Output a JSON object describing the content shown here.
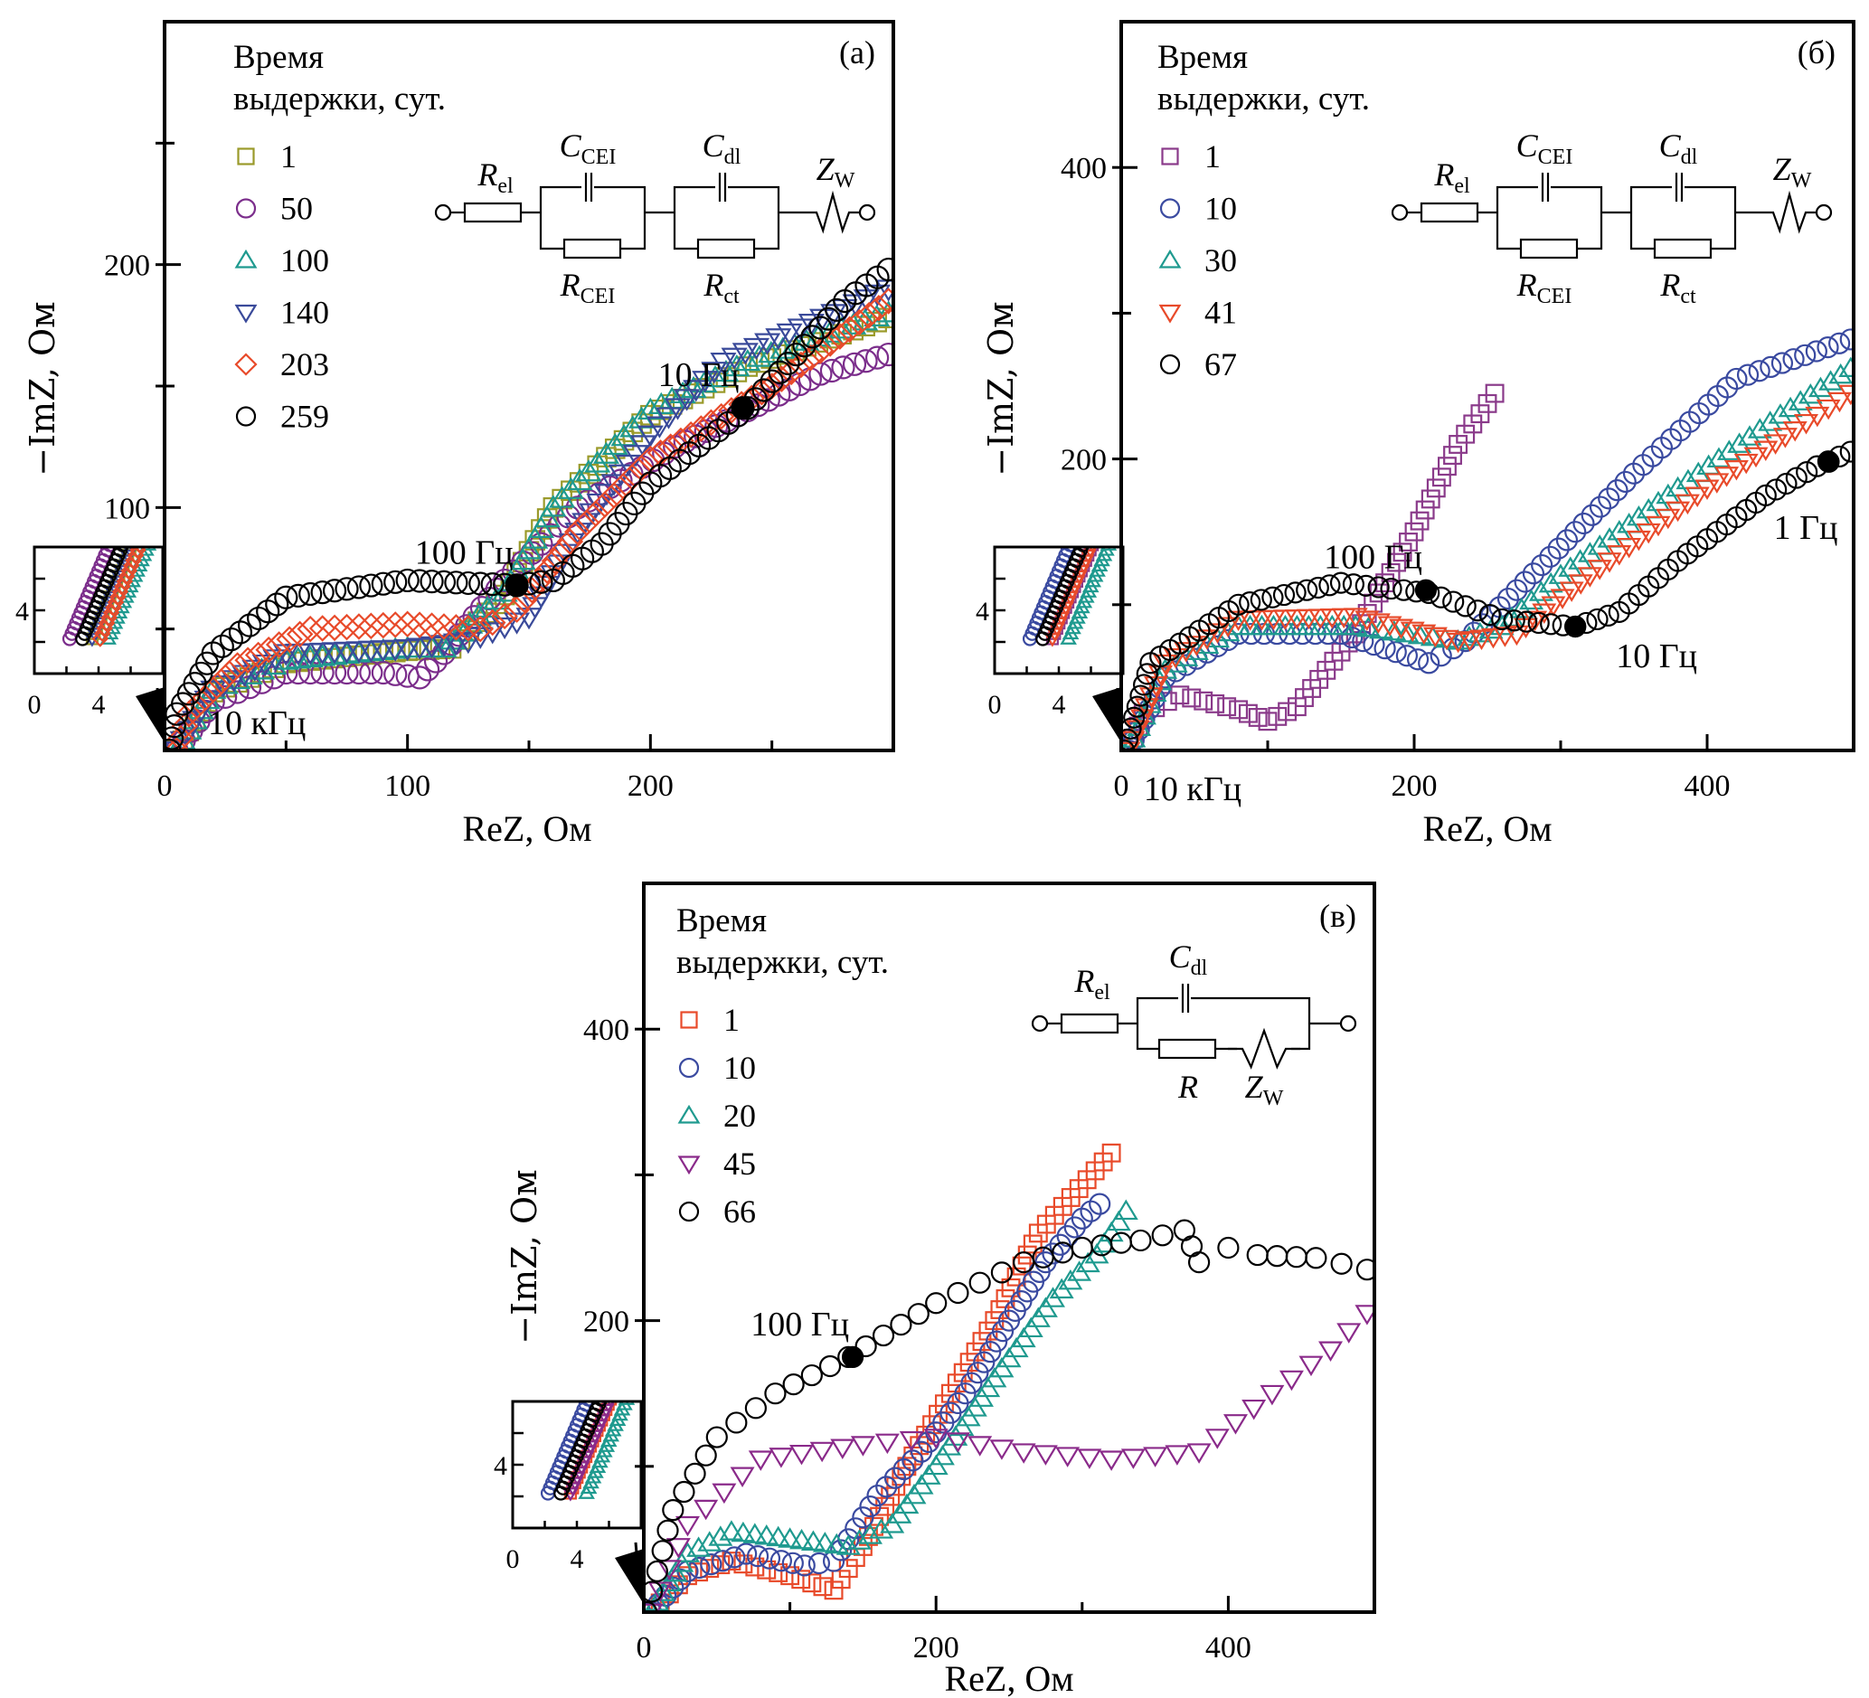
{
  "figure": {
    "legend_title_line1": "Время",
    "legend_title_line2": "выдержки, сут.",
    "xlabel": "ReZ, Ом",
    "ylabel": "−ImZ, Ом"
  },
  "chart_data": [
    {
      "type": "scatter",
      "panel": "(а)",
      "xlabel": "ReZ, Ом",
      "ylabel": "−ImZ, Ом",
      "xlim": [
        0,
        300
      ],
      "ylim": [
        0,
        300
      ],
      "xticks": [
        0,
        100,
        200
      ],
      "yticks": [
        100,
        200
      ],
      "legend_title": "Время выдержки, сут.",
      "legend_placement": "top-left",
      "circuit": {
        "type": "Rel-(CCEI||RCEI)-(Cdl||Rct)-ZW",
        "labels": [
          {
            "main": "R",
            "sub": "el"
          },
          {
            "main": "C",
            "sub": "CEI"
          },
          {
            "main": "R",
            "sub": "CEI"
          },
          {
            "main": "C",
            "sub": "dl"
          },
          {
            "main": "R",
            "sub": "ct"
          },
          {
            "main": "Z",
            "sub": "W"
          }
        ]
      },
      "inset": {
        "xticks": [
          "0",
          "4"
        ],
        "yticks": [
          "4"
        ],
        "xlim": [
          0,
          8
        ],
        "ylim": [
          0,
          8
        ]
      },
      "annotations": [
        {
          "text": "10 Гц",
          "x": 238,
          "y": 141
        },
        {
          "text": "100 Гц",
          "x": 145,
          "y": 68
        },
        {
          "text": "10 кГц",
          "x": 3,
          "y": 3
        }
      ],
      "series": [
        {
          "name": "1",
          "marker": "square",
          "color": "#9a9a2a",
          "points": [
            [
              5,
              0
            ],
            [
              20,
              24
            ],
            [
              50,
              36
            ],
            [
              100,
              41
            ],
            [
              118,
              42
            ],
            [
              140,
              64
            ],
            [
              160,
              100
            ],
            [
              200,
              138
            ],
            [
              240,
              158
            ],
            [
              298,
              178
            ]
          ]
        },
        {
          "name": "50",
          "marker": "circle",
          "color": "#7b2d8b",
          "points": [
            [
              5,
              0
            ],
            [
              20,
              20
            ],
            [
              50,
              32
            ],
            [
              90,
              32
            ],
            [
              105,
              30
            ],
            [
              115,
              40
            ],
            [
              140,
              70
            ],
            [
              170,
              100
            ],
            [
              210,
              125
            ],
            [
              240,
              140
            ],
            [
              270,
              155
            ],
            [
              298,
              163
            ]
          ]
        },
        {
          "name": "100",
          "marker": "triangle-up",
          "color": "#1f9a8f",
          "points": [
            [
              5,
              0
            ],
            [
              20,
              25
            ],
            [
              50,
              37
            ],
            [
              100,
              42
            ],
            [
              115,
              42
            ],
            [
              140,
              65
            ],
            [
              160,
              100
            ],
            [
              200,
              140
            ],
            [
              240,
              160
            ],
            [
              298,
              180
            ]
          ]
        },
        {
          "name": "140",
          "marker": "triangle-down",
          "color": "#3a4a9a",
          "points": [
            [
              5,
              0
            ],
            [
              20,
              25
            ],
            [
              50,
              40
            ],
            [
              100,
              42
            ],
            [
              125,
              45
            ],
            [
              150,
              55
            ],
            [
              170,
              90
            ],
            [
              200,
              130
            ],
            [
              230,
              160
            ],
            [
              298,
              190
            ]
          ]
        },
        {
          "name": "203",
          "marker": "diamond",
          "color": "#e84a2a",
          "points": [
            [
              5,
              0
            ],
            [
              10,
              15
            ],
            [
              30,
              35
            ],
            [
              60,
              50
            ],
            [
              100,
              52
            ],
            [
              130,
              50
            ],
            [
              145,
              58
            ],
            [
              170,
              90
            ],
            [
              200,
              120
            ],
            [
              250,
              150
            ],
            [
              298,
              185
            ]
          ]
        },
        {
          "name": "259",
          "marker": "circle",
          "color": "#000000",
          "points": [
            [
              2,
              0
            ],
            [
              5,
              15
            ],
            [
              20,
              40
            ],
            [
              50,
              63
            ],
            [
              100,
              70
            ],
            [
              145,
              68
            ],
            [
              160,
              70
            ],
            [
              180,
              85
            ],
            [
              200,
              110
            ],
            [
              240,
              141
            ],
            [
              280,
              185
            ],
            [
              298,
              198
            ]
          ],
          "filled_points": [
            [
              145,
              68
            ],
            [
              238,
              141
            ]
          ]
        }
      ]
    },
    {
      "type": "scatter",
      "panel": "(б)",
      "xlabel": "ReZ, Ом",
      "ylabel": "−ImZ, Ом",
      "xlim": [
        0,
        500
      ],
      "ylim": [
        0,
        500
      ],
      "xticks": [
        0,
        200,
        400
      ],
      "yticks": [
        200,
        400
      ],
      "legend_title": "Время выдержки, сут.",
      "legend_placement": "top-left",
      "circuit": {
        "type": "Rel-(CCEI||RCEI)-(Cdl||Rct)-ZW",
        "labels": [
          {
            "main": "R",
            "sub": "el"
          },
          {
            "main": "C",
            "sub": "CEI"
          },
          {
            "main": "R",
            "sub": "CEI"
          },
          {
            "main": "C",
            "sub": "dl"
          },
          {
            "main": "R",
            "sub": "ct"
          },
          {
            "main": "Z",
            "sub": "W"
          }
        ]
      },
      "inset": {
        "xticks": [
          "0",
          "4"
        ],
        "yticks": [
          "4"
        ],
        "xlim": [
          0,
          8
        ],
        "ylim": [
          0,
          8
        ]
      },
      "annotations": [
        {
          "text": "100 Гц",
          "x": 208,
          "y": 110
        },
        {
          "text": "10 Гц",
          "x": 310,
          "y": 85
        },
        {
          "text": "1 Гц",
          "x": 483,
          "y": 198
        },
        {
          "text": "10 кГц",
          "x": 3,
          "y": 3
        }
      ],
      "series": [
        {
          "name": "1",
          "marker": "square",
          "color": "#8a3a8a",
          "points": [
            [
              5,
              0
            ],
            [
              15,
              25
            ],
            [
              40,
              38
            ],
            [
              80,
              28
            ],
            [
              100,
              20
            ],
            [
              120,
              30
            ],
            [
              160,
              80
            ],
            [
              200,
              150
            ],
            [
              230,
              210
            ],
            [
              255,
              245
            ]
          ]
        },
        {
          "name": "10",
          "marker": "circle",
          "color": "#3a4aa0",
          "points": [
            [
              5,
              0
            ],
            [
              30,
              50
            ],
            [
              80,
              80
            ],
            [
              150,
              80
            ],
            [
              210,
              60
            ],
            [
              235,
              75
            ],
            [
              270,
              110
            ],
            [
              350,
              190
            ],
            [
              420,
              255
            ],
            [
              498,
              282
            ]
          ]
        },
        {
          "name": "30",
          "marker": "triangle-up",
          "color": "#1f9a8f",
          "points": [
            [
              5,
              0
            ],
            [
              30,
              55
            ],
            [
              80,
              85
            ],
            [
              160,
              85
            ],
            [
              230,
              75
            ],
            [
              260,
              85
            ],
            [
              300,
              120
            ],
            [
              380,
              180
            ],
            [
              450,
              230
            ],
            [
              498,
              262
            ]
          ]
        },
        {
          "name": "41",
          "marker": "triangle-down",
          "color": "#e84a2a",
          "points": [
            [
              5,
              0
            ],
            [
              30,
              60
            ],
            [
              80,
              90
            ],
            [
              160,
              92
            ],
            [
              230,
              75
            ],
            [
              270,
              80
            ],
            [
              320,
              120
            ],
            [
              400,
              180
            ],
            [
              460,
              220
            ],
            [
              498,
              245
            ]
          ]
        },
        {
          "name": "67",
          "marker": "circle",
          "color": "#000000",
          "points": [
            [
              2,
              0
            ],
            [
              20,
              60
            ],
            [
              80,
              100
            ],
            [
              150,
              115
            ],
            [
              210,
              108
            ],
            [
              260,
              90
            ],
            [
              310,
              85
            ],
            [
              340,
              95
            ],
            [
              380,
              130
            ],
            [
              440,
              175
            ],
            [
              475,
              195
            ],
            [
              498,
              205
            ]
          ],
          "filled_points": [
            [
              208,
              110
            ],
            [
              310,
              85
            ],
            [
              483,
              198
            ]
          ]
        }
      ]
    },
    {
      "type": "scatter",
      "panel": "(в)",
      "xlabel": "ReZ, Ом",
      "ylabel": "−ImZ, Ом",
      "xlim": [
        0,
        500
      ],
      "ylim": [
        0,
        500
      ],
      "xticks": [
        0,
        200,
        400
      ],
      "yticks": [
        200,
        400
      ],
      "legend_title": "Время выдержки, сут.",
      "legend_placement": "top-left",
      "circuit": {
        "type": "Rel-(Cdl||(R-ZW))",
        "labels": [
          {
            "main": "R",
            "sub": "el"
          },
          {
            "main": "C",
            "sub": "dl"
          },
          {
            "main": "R",
            "sub": ""
          },
          {
            "main": "Z",
            "sub": "W"
          }
        ]
      },
      "inset": {
        "xticks": [
          "0",
          "4"
        ],
        "yticks": [
          "4"
        ],
        "xlim": [
          0,
          8
        ],
        "ylim": [
          0,
          8
        ]
      },
      "annotations": [
        {
          "text": "100 Гц",
          "x": 143,
          "y": 175
        }
      ],
      "series": [
        {
          "name": "1",
          "marker": "square",
          "color": "#e84a2a",
          "points": [
            [
              5,
              0
            ],
            [
              30,
              25
            ],
            [
              60,
              35
            ],
            [
              100,
              25
            ],
            [
              130,
              15
            ],
            [
              150,
              45
            ],
            [
              180,
              100
            ],
            [
              210,
              150
            ],
            [
              240,
              200
            ],
            [
              270,
              260
            ],
            [
              320,
              315
            ]
          ]
        },
        {
          "name": "10",
          "marker": "circle",
          "color": "#3a4aa0",
          "points": [
            [
              5,
              0
            ],
            [
              30,
              28
            ],
            [
              70,
              40
            ],
            [
              110,
              32
            ],
            [
              130,
              35
            ],
            [
              160,
              80
            ],
            [
              190,
              110
            ],
            [
              220,
              150
            ],
            [
              250,
              200
            ],
            [
              275,
              240
            ],
            [
              300,
              270
            ],
            [
              312,
              280
            ]
          ]
        },
        {
          "name": "20",
          "marker": "triangle-up",
          "color": "#1f9a8f",
          "points": [
            [
              5,
              0
            ],
            [
              30,
              40
            ],
            [
              60,
              55
            ],
            [
              100,
              50
            ],
            [
              140,
              45
            ],
            [
              170,
              60
            ],
            [
              200,
              100
            ],
            [
              240,
              160
            ],
            [
              280,
              215
            ],
            [
              310,
              245
            ],
            [
              330,
              275
            ]
          ]
        },
        {
          "name": "45",
          "marker": "triangle-down",
          "color": "#8a2a8a",
          "points": [
            [
              5,
              0
            ],
            [
              30,
              60
            ],
            [
              80,
              105
            ],
            [
              150,
              115
            ],
            [
              200,
              120
            ],
            [
              260,
              110
            ],
            [
              320,
              105
            ],
            [
              380,
              110
            ],
            [
              430,
              150
            ],
            [
              470,
              180
            ],
            [
              495,
              205
            ]
          ]
        },
        {
          "name": "66",
          "marker": "circle",
          "color": "#000000",
          "points": [
            [
              2,
              0
            ],
            [
              20,
              70
            ],
            [
              50,
              120
            ],
            [
              90,
              150
            ],
            [
              140,
              175
            ],
            [
              200,
              212
            ],
            [
              260,
              240
            ],
            [
              300,
              250
            ],
            [
              340,
              255
            ],
            [
              370,
              262
            ],
            [
              380,
              240
            ],
            [
              400,
              250
            ],
            [
              420,
              245
            ],
            [
              460,
              243
            ],
            [
              495,
              235
            ]
          ],
          "filled_points": [
            [
              143,
              175
            ]
          ]
        }
      ]
    }
  ]
}
